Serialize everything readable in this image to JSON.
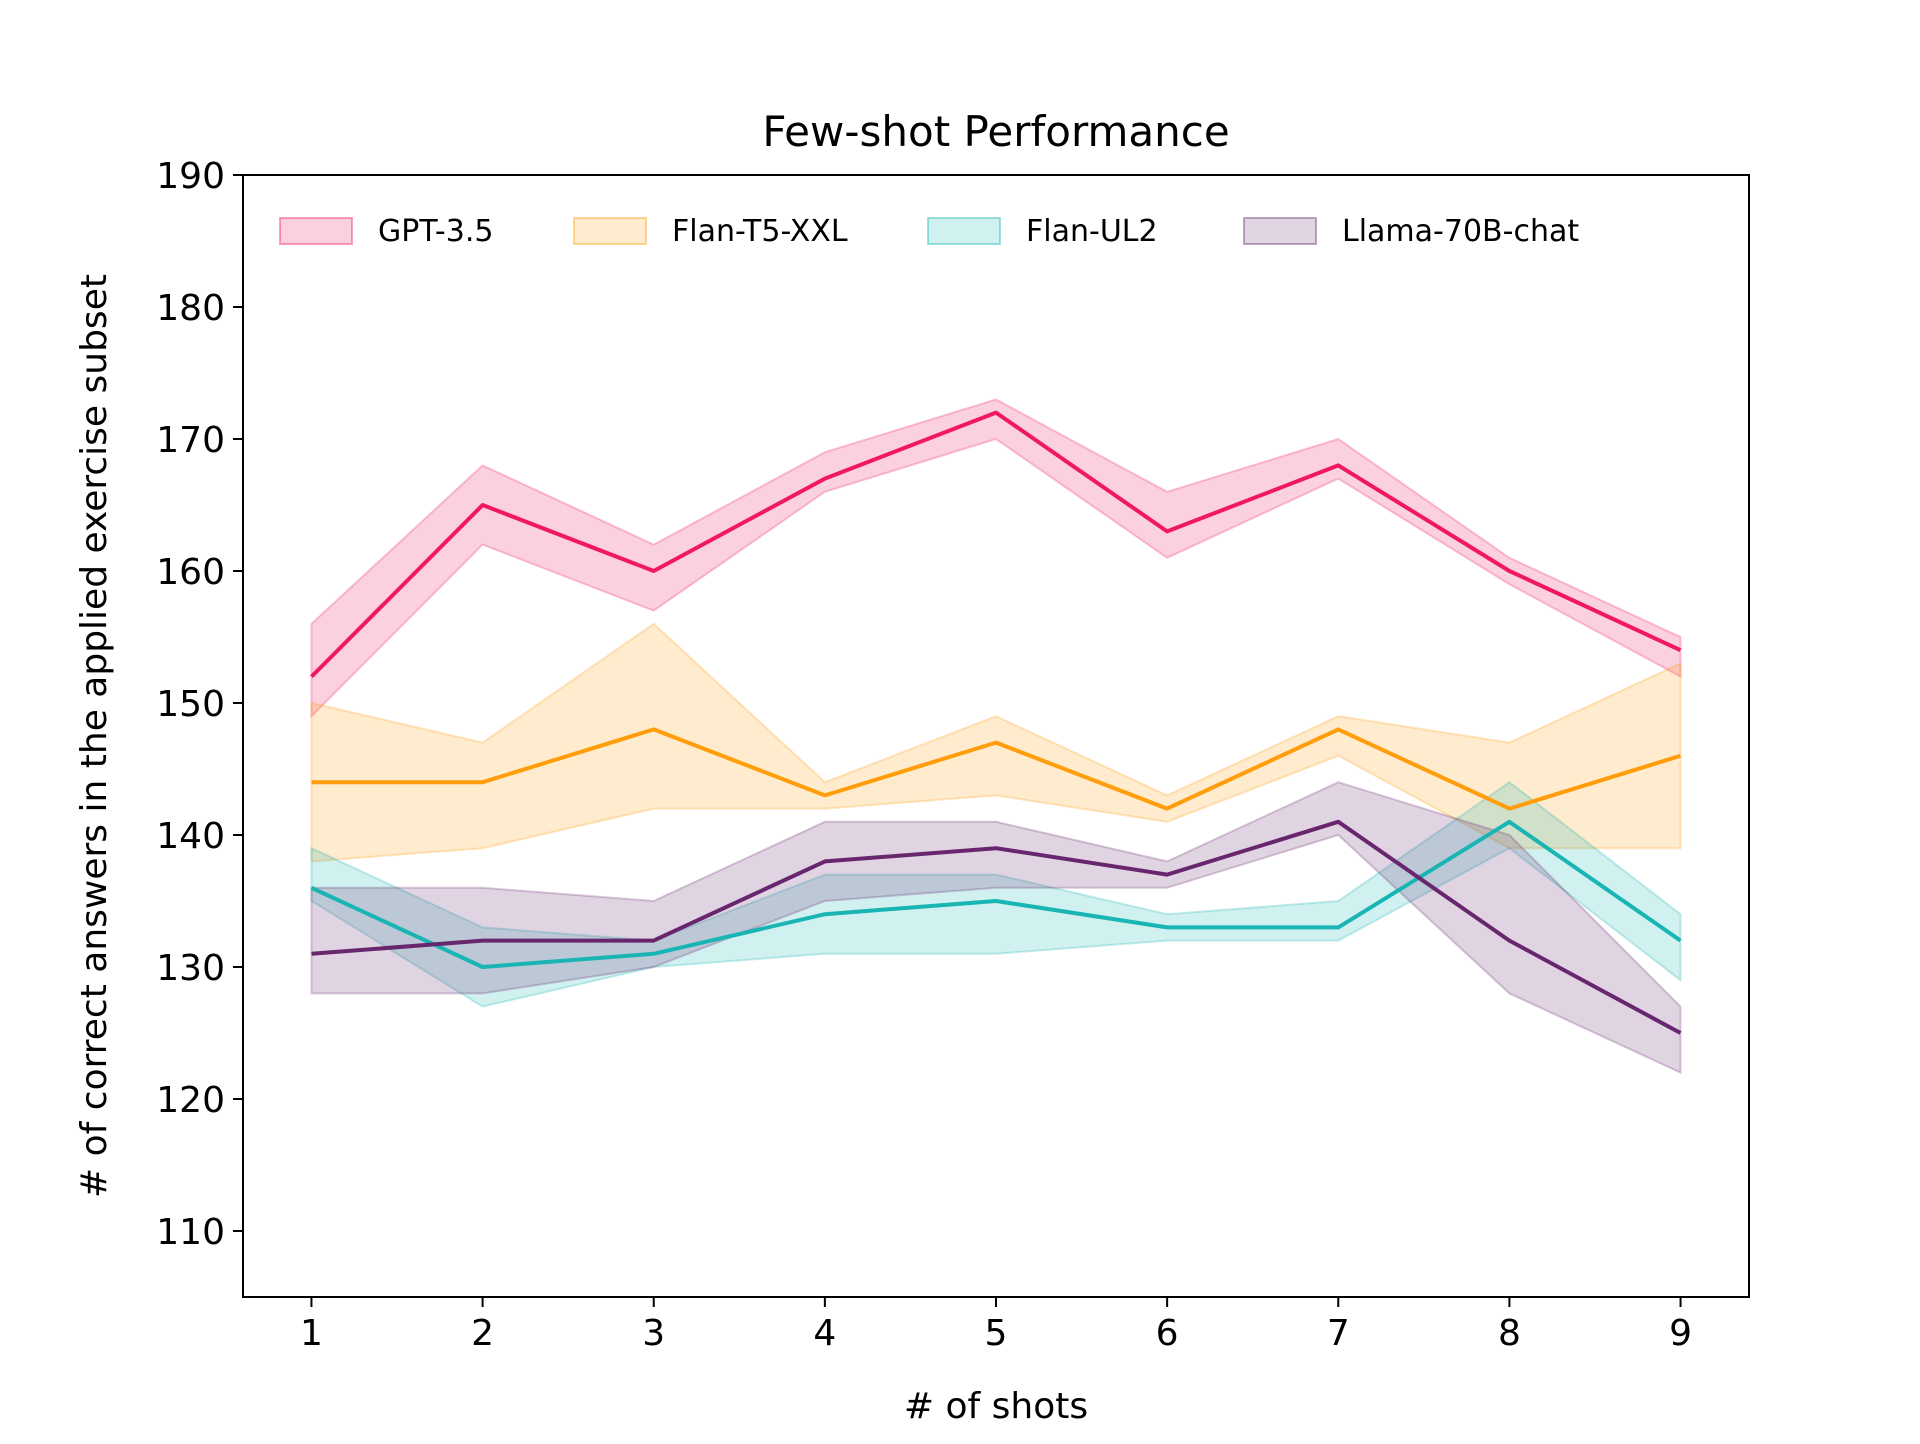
{
  "chart_data": {
    "type": "line",
    "title": "Few-shot Performance",
    "xlabel": "# of shots",
    "ylabel": "# of correct answers in the applied exercise subset",
    "x": [
      1,
      2,
      3,
      4,
      5,
      6,
      7,
      8,
      9
    ],
    "xlim": [
      0.6,
      9.4
    ],
    "ylim": [
      105,
      190
    ],
    "xticks": [
      1,
      2,
      3,
      4,
      5,
      6,
      7,
      8,
      9
    ],
    "yticks": [
      110,
      120,
      130,
      140,
      150,
      160,
      170,
      180,
      190
    ],
    "grid": false,
    "legend": {
      "placement": "top",
      "ncol": 4
    },
    "series": [
      {
        "name": "GPT-3.5",
        "color": "#f0185f",
        "values": [
          152,
          165,
          160,
          167,
          172,
          163,
          168,
          160,
          154
        ],
        "lower": [
          149,
          162,
          157,
          166,
          170,
          161,
          167,
          159,
          152
        ],
        "upper": [
          156,
          168,
          162,
          169,
          173,
          166,
          170,
          161,
          155
        ]
      },
      {
        "name": "Flan-T5-XXL",
        "color": "#ff9d0a",
        "values": [
          144,
          144,
          148,
          143,
          147,
          142,
          148,
          142,
          146
        ],
        "lower": [
          138,
          139,
          142,
          142,
          143,
          141,
          146,
          139,
          139
        ],
        "upper": [
          150,
          147,
          156,
          144,
          149,
          143,
          149,
          147,
          153
        ]
      },
      {
        "name": "Flan-UL2",
        "color": "#19b4b4",
        "values": [
          136,
          130,
          131,
          134,
          135,
          133,
          133,
          141,
          132
        ],
        "lower": [
          135,
          127,
          130,
          131,
          131,
          132,
          132,
          139,
          129
        ],
        "upper": [
          139,
          133,
          132,
          137,
          137,
          134,
          135,
          144,
          134
        ]
      },
      {
        "name": "Llama-70B-chat",
        "color": "#68266e",
        "values": [
          131,
          132,
          132,
          138,
          139,
          137,
          141,
          132,
          125
        ],
        "lower": [
          128,
          128,
          130,
          135,
          136,
          136,
          140,
          128,
          122
        ],
        "upper": [
          136,
          136,
          135,
          141,
          141,
          138,
          144,
          140,
          127
        ]
      }
    ]
  }
}
